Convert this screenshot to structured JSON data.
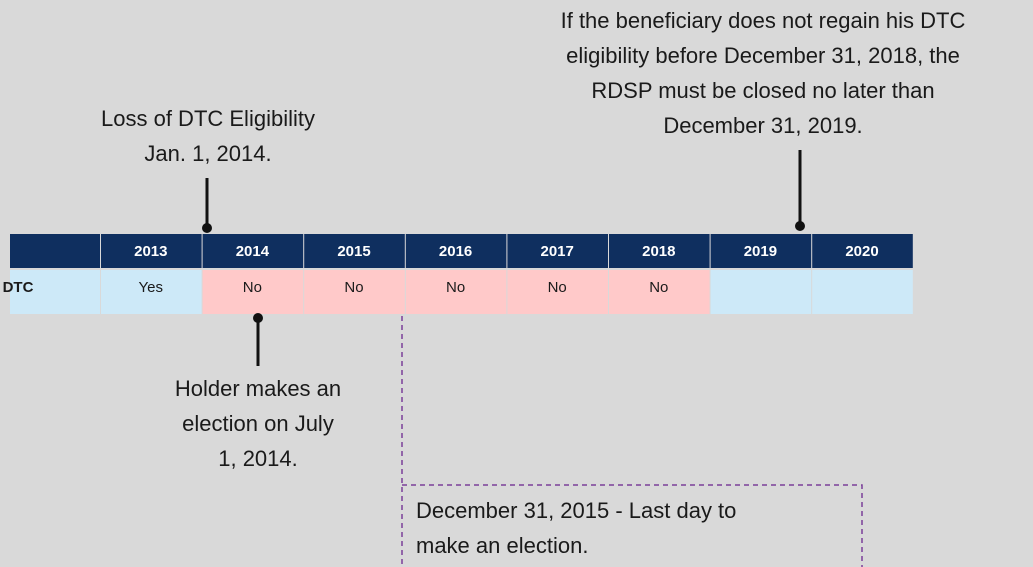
{
  "annotations": {
    "loss": [
      "Loss of DTC Eligibility",
      "Jan. 1, 2014."
    ],
    "closure": [
      "If the beneficiary does not regain his DTC",
      "eligibility before December 31, 2018, the",
      "RDSP must be closed no later than",
      "December 31, 2019."
    ],
    "holder": [
      "Holder makes an",
      "election on July",
      "1, 2014."
    ],
    "deadline": [
      "December 31, 2015 - Last day to",
      "make an election."
    ]
  },
  "table": {
    "years": [
      "2013",
      "2014",
      "2015",
      "2016",
      "2017",
      "2018",
      "2019",
      "2020"
    ],
    "row_label": "DTC",
    "row_values": [
      "Yes",
      "No",
      "No",
      "No",
      "No",
      "No"
    ]
  }
}
